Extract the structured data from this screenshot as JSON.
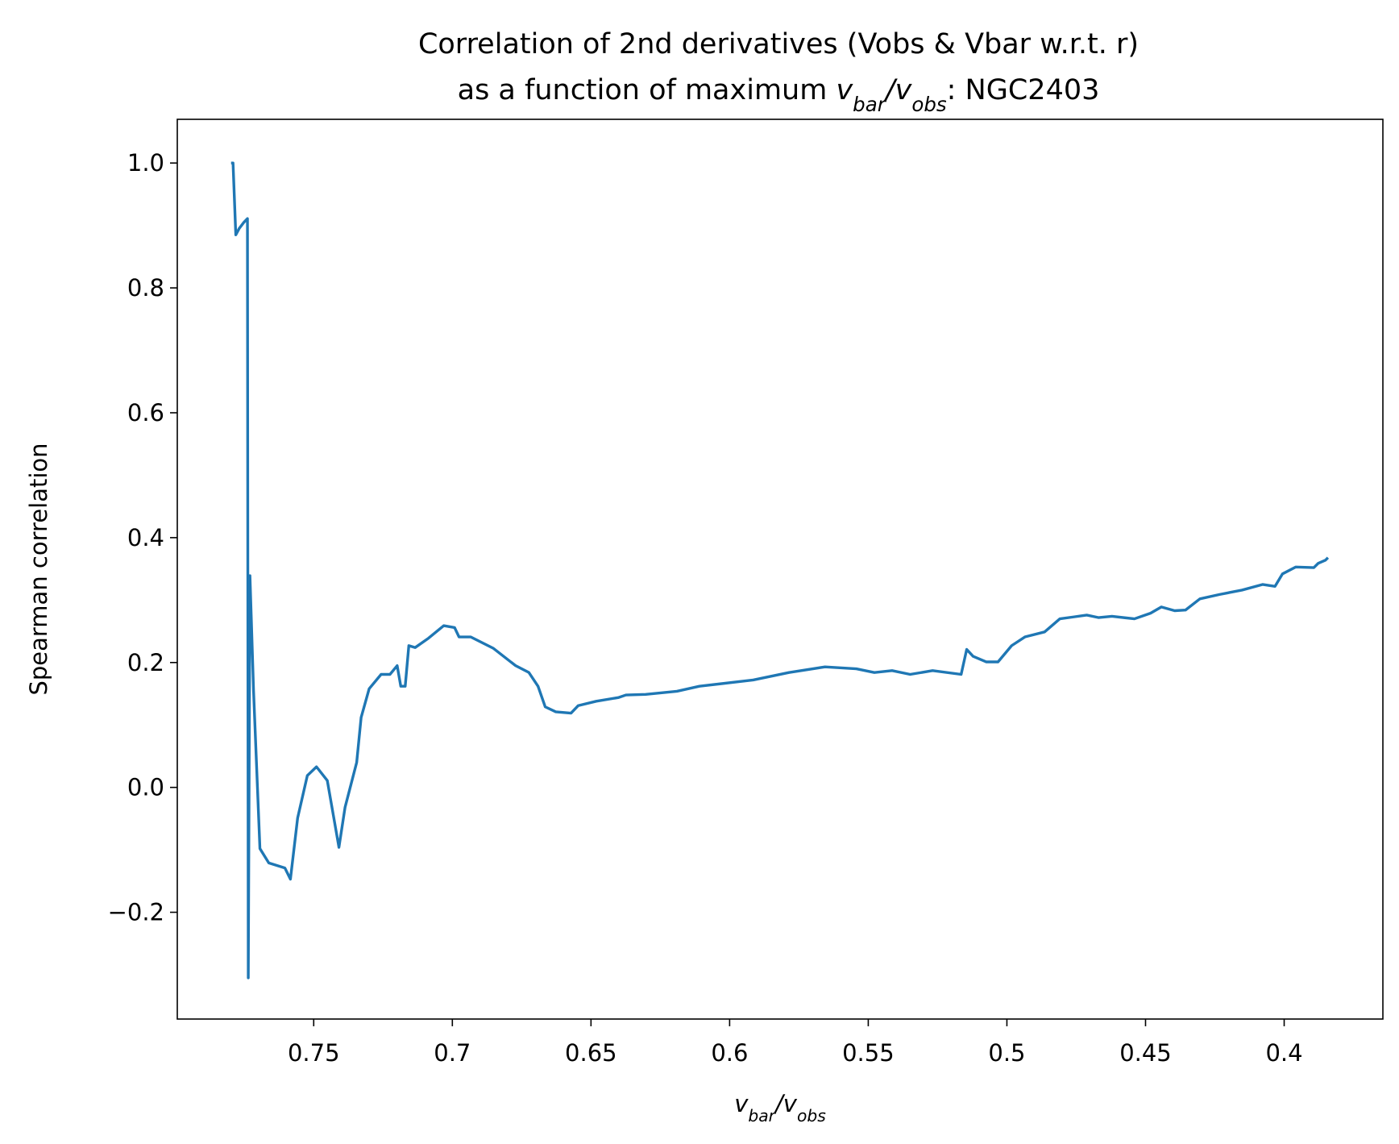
{
  "chart_data": {
    "type": "line",
    "title": [
      "Correlation of 2nd derivatives (Vobs & Vbar w.r.t. r)",
      [
        "as a function of maximum ",
        "v",
        "bar",
        "/",
        "v",
        "obs",
        ": NGC2403"
      ]
    ],
    "x_label": [
      "v",
      "bar",
      "/",
      "v",
      "obs"
    ],
    "y_label": "Spearman correlation",
    "x": [
      0.7798,
      0.7791,
      0.7781,
      0.7769,
      0.7752,
      0.7739,
      0.7736,
      0.773,
      0.7717,
      0.7694,
      0.7662,
      0.7604,
      0.7584,
      0.7558,
      0.7523,
      0.749,
      0.7451,
      0.7409,
      0.7387,
      0.7345,
      0.7329,
      0.73,
      0.7257,
      0.7225,
      0.7199,
      0.7186,
      0.717,
      0.7157,
      0.7134,
      0.7086,
      0.7031,
      0.6992,
      0.6976,
      0.6934,
      0.6853,
      0.6772,
      0.6724,
      0.6691,
      0.6665,
      0.6627,
      0.6572,
      0.6546,
      0.6481,
      0.64,
      0.6374,
      0.6303,
      0.619,
      0.6109,
      0.5915,
      0.5786,
      0.5656,
      0.5543,
      0.5478,
      0.5414,
      0.5349,
      0.5268,
      0.5165,
      0.5145,
      0.5122,
      0.5074,
      0.5032,
      0.4983,
      0.4935,
      0.4864,
      0.4809,
      0.476,
      0.4712,
      0.467,
      0.4621,
      0.454,
      0.4482,
      0.4443,
      0.4395,
      0.4356,
      0.4304,
      0.4233,
      0.4152,
      0.4078,
      0.4033,
      0.4006,
      0.3958,
      0.3893,
      0.3877,
      0.3851,
      0.3842
    ],
    "series": [
      {
        "color": "#1f77b4",
        "values": [
          1.0,
          1.0,
          0.885,
          0.895,
          0.905,
          0.911,
          -0.305,
          0.339,
          0.155,
          -0.098,
          -0.121,
          -0.129,
          -0.147,
          -0.049,
          0.019,
          0.033,
          0.011,
          -0.096,
          -0.032,
          0.04,
          0.112,
          0.158,
          0.181,
          0.181,
          0.195,
          0.162,
          0.162,
          0.227,
          0.224,
          0.239,
          0.259,
          0.256,
          0.241,
          0.241,
          0.223,
          0.195,
          0.184,
          0.162,
          0.129,
          0.121,
          0.119,
          0.131,
          0.138,
          0.144,
          0.148,
          0.149,
          0.154,
          0.162,
          0.172,
          0.184,
          0.193,
          0.19,
          0.184,
          0.187,
          0.181,
          0.187,
          0.181,
          0.221,
          0.21,
          0.201,
          0.201,
          0.227,
          0.241,
          0.249,
          0.27,
          0.273,
          0.276,
          0.272,
          0.274,
          0.27,
          0.279,
          0.289,
          0.283,
          0.284,
          0.302,
          0.309,
          0.316,
          0.325,
          0.322,
          0.342,
          0.353,
          0.352,
          0.359,
          0.364,
          0.368
        ]
      }
    ],
    "xlim": [
      0.7992,
      0.3644
    ],
    "ylim": [
      -0.371,
      1.07
    ],
    "xticks": [
      0.75,
      0.7,
      0.65,
      0.6,
      0.55,
      0.5,
      0.45,
      0.4
    ],
    "yticks": [
      {
        "value": -0.2,
        "label": "−0.2"
      },
      {
        "value": 0.0,
        "label": "0.0"
      },
      0.2,
      0.4,
      0.6,
      0.8,
      {
        "value": 1.0,
        "label": "1.0"
      }
    ]
  }
}
